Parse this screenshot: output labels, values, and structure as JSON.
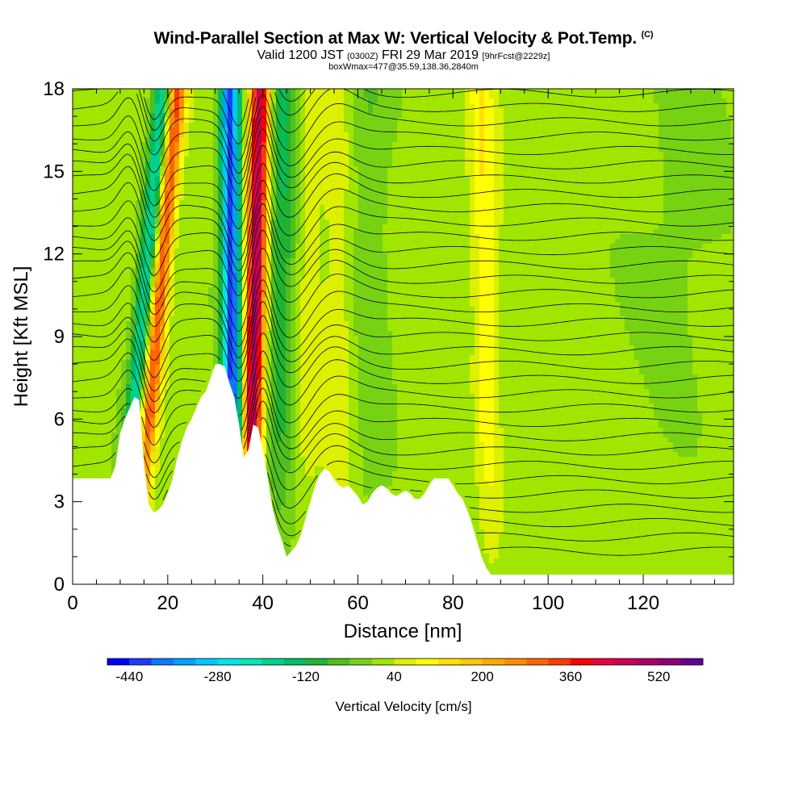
{
  "header": {
    "title": "Wind-Parallel Section at Max W: Vertical Velocity & Pot.Temp.",
    "copyright": "(C)",
    "valid_prefix": "Valid 1200 JST",
    "valid_utc": "(0300Z)",
    "valid_date": "FRI 29 Mar 2019",
    "forecast": "[9hrFcst@2229z]",
    "boxwmax": "boxWmax=477@35.59,138.36,2840m"
  },
  "chart_data": {
    "type": "heatmap",
    "xlabel": "Distance [nm]",
    "ylabel": "Height [Kft MSL]",
    "xlim": [
      0,
      139
    ],
    "ylim": [
      0,
      18
    ],
    "x_ticks": [
      0,
      20,
      40,
      60,
      80,
      100,
      120
    ],
    "y_ticks": [
      0,
      3,
      6,
      9,
      12,
      15,
      18
    ],
    "grid": false,
    "colorbar": {
      "label": "Vertical Velocity [cm/s]",
      "tick_labels": [
        -440,
        -280,
        -120,
        40,
        200,
        360,
        520
      ],
      "bins": [
        -480,
        -440,
        -400,
        -360,
        -320,
        -280,
        -240,
        -200,
        -160,
        -120,
        -80,
        -40,
        0,
        40,
        80,
        120,
        160,
        200,
        240,
        280,
        320,
        360,
        400,
        440,
        480,
        520,
        560
      ],
      "colors": [
        "#0000ff",
        "#1e3cff",
        "#0a78ff",
        "#00a0ff",
        "#00c8ff",
        "#00e6e6",
        "#00e6b4",
        "#00d28c",
        "#00be64",
        "#1eb432",
        "#50be1e",
        "#78d214",
        "#a0e600",
        "#dcf000",
        "#ffff00",
        "#ffe100",
        "#ffc800",
        "#ffaa00",
        "#ff8c00",
        "#ff6400",
        "#ff3c00",
        "#ff0000",
        "#e6003c",
        "#c80050",
        "#aa0064",
        "#8c0078",
        "#640096"
      ]
    },
    "terrain_top_kft": [
      [
        0,
        3.85
      ],
      [
        8,
        3.85
      ],
      [
        9,
        4.3
      ],
      [
        10,
        5.5
      ],
      [
        11,
        6.0
      ],
      [
        12,
        6.4
      ],
      [
        13,
        6.8
      ],
      [
        14,
        6.7
      ],
      [
        15,
        4.4
      ],
      [
        16,
        2.9
      ],
      [
        17,
        2.6
      ],
      [
        18,
        2.7
      ],
      [
        19,
        2.9
      ],
      [
        20,
        3.3
      ],
      [
        21,
        3.8
      ],
      [
        22,
        4.6
      ],
      [
        23,
        5.2
      ],
      [
        24,
        5.7
      ],
      [
        25,
        6.0
      ],
      [
        26,
        6.4
      ],
      [
        27,
        6.8
      ],
      [
        28,
        7.0
      ],
      [
        29,
        7.5
      ],
      [
        30,
        8.0
      ],
      [
        31,
        8.0
      ],
      [
        32,
        7.9
      ],
      [
        33,
        7.3
      ],
      [
        34,
        6.8
      ],
      [
        35,
        5.8
      ],
      [
        36,
        4.6
      ],
      [
        37,
        4.9
      ],
      [
        38,
        5.8
      ],
      [
        39,
        5.7
      ],
      [
        40,
        4.9
      ],
      [
        41,
        3.9
      ],
      [
        42,
        2.8
      ],
      [
        43,
        2.1
      ],
      [
        44,
        1.6
      ],
      [
        45,
        1.0
      ],
      [
        46,
        1.2
      ],
      [
        47,
        1.4
      ],
      [
        48,
        1.8
      ],
      [
        49,
        2.4
      ],
      [
        50,
        3.0
      ],
      [
        51,
        3.6
      ],
      [
        52,
        4.0
      ],
      [
        53,
        4.2
      ],
      [
        54,
        4.1
      ],
      [
        55,
        3.8
      ],
      [
        56,
        3.6
      ],
      [
        57,
        3.5
      ],
      [
        58,
        3.6
      ],
      [
        59,
        3.4
      ],
      [
        60,
        3.2
      ],
      [
        61,
        2.9
      ],
      [
        62,
        3.0
      ],
      [
        63,
        3.3
      ],
      [
        64,
        3.5
      ],
      [
        65,
        3.6
      ],
      [
        66,
        3.5
      ],
      [
        67,
        3.3
      ],
      [
        68,
        3.2
      ],
      [
        69,
        3.3
      ],
      [
        70,
        3.4
      ],
      [
        71,
        3.3
      ],
      [
        72,
        3.1
      ],
      [
        73,
        3.1
      ],
      [
        74,
        3.3
      ],
      [
        75,
        3.6
      ],
      [
        76,
        3.85
      ],
      [
        77,
        3.85
      ],
      [
        78,
        3.85
      ],
      [
        79,
        3.85
      ],
      [
        80,
        3.6
      ],
      [
        81,
        3.3
      ],
      [
        82,
        3.1
      ],
      [
        83,
        2.7
      ],
      [
        84,
        2.2
      ],
      [
        85,
        1.6
      ],
      [
        86,
        1.0
      ],
      [
        87,
        0.6
      ],
      [
        88,
        0.35
      ],
      [
        139,
        0.35
      ]
    ],
    "updrafts": [
      {
        "x_bottom": 13,
        "x_top": 22,
        "w_peak": 320,
        "width_nm": 1.9
      },
      {
        "x_bottom": 37,
        "x_top": 39.5,
        "w_peak": 477,
        "width_nm": 2.2
      },
      {
        "x_bottom": 46,
        "x_top": 49,
        "w_peak": 60,
        "width_nm": 4.0
      },
      {
        "x_bottom": 58,
        "x_top": 56,
        "w_peak": 50,
        "width_nm": 3.5
      },
      {
        "x_bottom": 88,
        "x_top": 86,
        "w_peak": 90,
        "width_nm": 2.5
      }
    ],
    "downdrafts": [
      {
        "x_bottom": 10,
        "x_top": 19,
        "w_peak": -230,
        "width_nm": 2.0
      },
      {
        "x_bottom": 34,
        "x_top": 33,
        "w_peak": -440,
        "width_nm": 2.0
      },
      {
        "x_bottom": 44,
        "x_top": 44.5,
        "w_peak": -150,
        "width_nm": 3.5
      },
      {
        "x_bottom": 62,
        "x_top": 62,
        "w_peak": -60,
        "width_nm": 5.0
      }
    ]
  }
}
